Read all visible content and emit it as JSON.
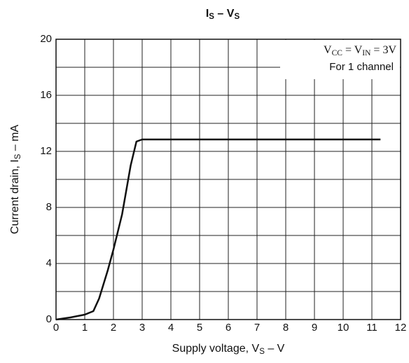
{
  "chart_data": {
    "type": "line",
    "title": [
      "I",
      "S",
      " – V",
      "S"
    ],
    "xlabel": [
      "Supply voltage, V",
      "S",
      " – V"
    ],
    "ylabel": [
      "Current drain, I",
      "S",
      " – mA"
    ],
    "annotations": [
      [
        "V",
        "CC",
        " = V",
        "IN",
        " = 3V"
      ],
      [
        "For 1 channel"
      ]
    ],
    "x": [
      0,
      0.5,
      1,
      1.3,
      1.5,
      1.8,
      2,
      2.3,
      2.6,
      2.8,
      3,
      11.3
    ],
    "series": [
      {
        "color": "#111111",
        "values": [
          0,
          0.15,
          0.35,
          0.6,
          1.5,
          3.5,
          5,
          7.5,
          11,
          12.7,
          12.85,
          12.85
        ]
      }
    ],
    "xlim": [
      0,
      12
    ],
    "xticks": [
      0,
      1,
      2,
      3,
      4,
      5,
      6,
      7,
      8,
      9,
      10,
      11,
      12
    ],
    "ylim": [
      0,
      20
    ],
    "yticks": [
      0,
      4,
      8,
      12,
      16,
      20
    ],
    "yminorticks": [
      2,
      6,
      10,
      14,
      18
    ],
    "grid": true
  }
}
